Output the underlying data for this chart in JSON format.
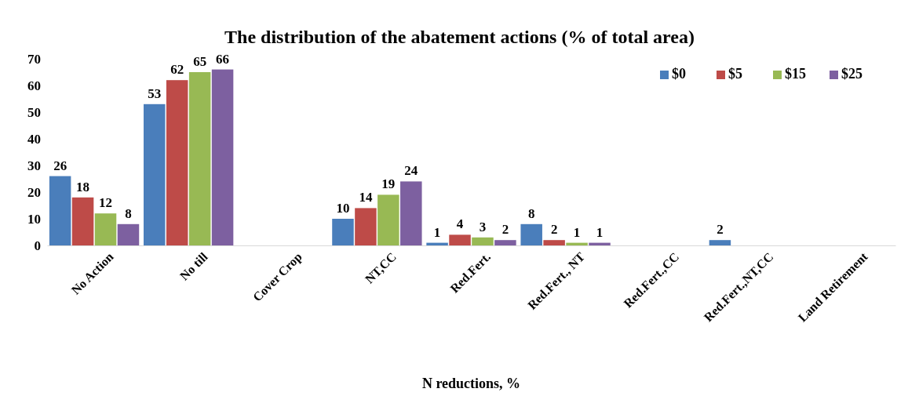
{
  "chart_data": {
    "type": "bar",
    "title": "The distribution of the abatement actions (% of total area)",
    "xlabel": "N reductions, %",
    "categories": [
      "No Action",
      "No till",
      "Cover Crop",
      "NT,CC",
      "Red.Fert.",
      "Red.Fert., NT",
      "Red.Fert.,CC",
      "Red.Fert.,NT,CC",
      "Land Retirement"
    ],
    "series": [
      {
        "name": "$0",
        "color": "#4a7ebb",
        "values": [
          26,
          53,
          null,
          10,
          1,
          8,
          null,
          2,
          null
        ]
      },
      {
        "name": "$5",
        "color": "#be4b48",
        "values": [
          18,
          62,
          null,
          14,
          4,
          2,
          null,
          null,
          null
        ]
      },
      {
        "name": "$15",
        "color": "#98b954",
        "values": [
          12,
          65,
          null,
          19,
          3,
          1,
          null,
          null,
          null
        ]
      },
      {
        "name": "$25",
        "color": "#7d60a0",
        "values": [
          8,
          66,
          null,
          24,
          2,
          1,
          null,
          null,
          null
        ]
      }
    ],
    "ylim": [
      0,
      70
    ],
    "yticks": [
      0,
      10,
      20,
      30,
      40,
      50,
      60,
      70
    ],
    "data_labels": true,
    "legend": "top right",
    "grid": false
  }
}
